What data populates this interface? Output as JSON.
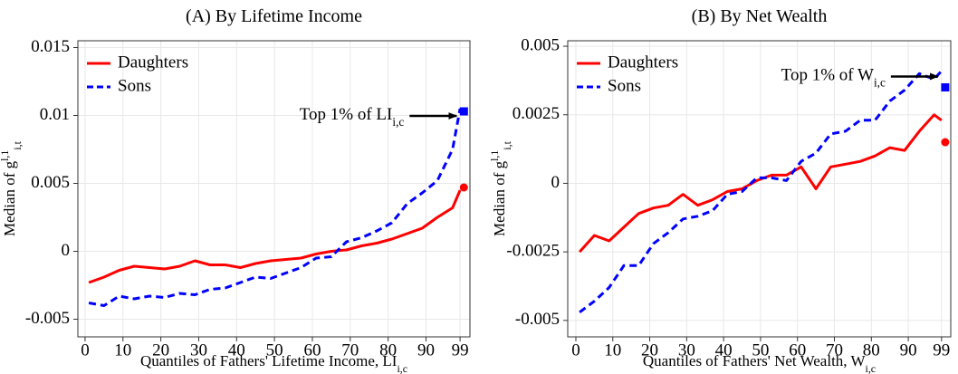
{
  "chart_data": [
    {
      "type": "line",
      "title": "(A) By Lifetime Income",
      "ylabel": "Median of g",
      "ylabel_sup": "l,1",
      "ylabel_sub": "i,t",
      "xlabel": "Quantiles of Fathers' Lifetime Income, LI",
      "xlabel_sub": "i,c",
      "x": [
        1,
        5,
        9,
        13,
        17,
        21,
        25,
        29,
        33,
        37,
        41,
        45,
        49,
        53,
        57,
        61,
        65,
        69,
        73,
        77,
        81,
        85,
        89,
        93,
        97,
        99
      ],
      "series": [
        {
          "name": "Daughters",
          "color": "#ff0000",
          "dash": false,
          "marker": "circle",
          "marker_value": 0.0047,
          "values": [
            -0.0023,
            -0.0019,
            -0.0014,
            -0.0011,
            -0.0012,
            -0.0013,
            -0.0011,
            -0.0007,
            -0.001,
            -0.001,
            -0.0012,
            -0.0009,
            -0.0007,
            -0.0006,
            -0.0005,
            -0.0002,
            0,
            0.0001,
            0.0004,
            0.0006,
            0.0009,
            0.0013,
            0.0017,
            0.0025,
            0.0032,
            0.0045
          ]
        },
        {
          "name": "Sons",
          "color": "#0000ff",
          "dash": true,
          "marker": "square",
          "marker_value": 0.0103,
          "values": [
            -0.0038,
            -0.004,
            -0.0033,
            -0.0035,
            -0.0033,
            -0.0034,
            -0.0031,
            -0.0032,
            -0.0028,
            -0.0027,
            -0.0023,
            -0.0019,
            -0.002,
            -0.0016,
            -0.0012,
            -0.0005,
            -0.0004,
            0.0007,
            0.001,
            0.0015,
            0.0021,
            0.0035,
            0.0043,
            0.0052,
            0.0075,
            0.0105
          ]
        }
      ],
      "marker_x": 100,
      "annotation": {
        "text": "Top 1% of LI",
        "sub": "i,c"
      },
      "xlim": [
        -1.9,
        101.6
      ],
      "xticks": [
        0,
        10,
        20,
        30,
        40,
        50,
        60,
        70,
        80,
        90,
        99
      ],
      "ylim": [
        -0.0063,
        0.0155
      ],
      "yticks": [
        -0.005,
        0,
        0.005,
        0.01,
        0.015
      ],
      "grid": true,
      "legend": "top-left"
    },
    {
      "type": "line",
      "title": "(B) By Net Wealth",
      "ylabel": "Median of g",
      "ylabel_sup": "l,1",
      "ylabel_sub": "i,t",
      "xlabel": "Quantiles of Fathers' Net Wealth, W",
      "xlabel_sub": "i,c",
      "x": [
        1,
        5,
        9,
        13,
        17,
        21,
        25,
        29,
        33,
        37,
        41,
        45,
        49,
        53,
        57,
        61,
        65,
        69,
        73,
        77,
        81,
        85,
        89,
        93,
        97,
        99
      ],
      "series": [
        {
          "name": "Daughters",
          "color": "#ff0000",
          "dash": false,
          "marker": "circle",
          "marker_value": 0.0015,
          "values": [
            -0.0025,
            -0.0019,
            -0.0021,
            -0.0016,
            -0.0011,
            -0.0009,
            -0.0008,
            -0.0004,
            -0.0008,
            -0.0006,
            -0.0003,
            -0.0002,
            0.0001,
            0.0003,
            0.0003,
            0.0006,
            -0.0002,
            0.0006,
            0.0007,
            0.0008,
            0.001,
            0.0013,
            0.0012,
            0.0019,
            0.0025,
            0.0023
          ]
        },
        {
          "name": "Sons",
          "color": "#0000ff",
          "dash": true,
          "marker": "square",
          "marker_value": 0.0035,
          "values": [
            -0.0047,
            -0.0043,
            -0.0038,
            -0.003,
            -0.003,
            -0.0022,
            -0.0018,
            -0.0013,
            -0.0012,
            -0.001,
            -0.0004,
            -0.0003,
            0.0002,
            0.0002,
            0.0001,
            0.0008,
            0.0011,
            0.0018,
            0.0019,
            0.0023,
            0.0023,
            0.003,
            0.0034,
            0.004,
            0.0038,
            0.0041
          ]
        }
      ],
      "marker_x": 100,
      "annotation": {
        "text": "Top 1% of W",
        "sub": "i,c"
      },
      "xlim": [
        -2.2,
        101.5
      ],
      "xticks": [
        0,
        10,
        20,
        30,
        40,
        50,
        60,
        70,
        80,
        90,
        99
      ],
      "ylim": [
        -0.0056,
        0.0052
      ],
      "yticks": [
        -0.005,
        -0.0025,
        0,
        0.0025,
        0.005
      ],
      "grid": true,
      "legend": "top-left"
    }
  ]
}
